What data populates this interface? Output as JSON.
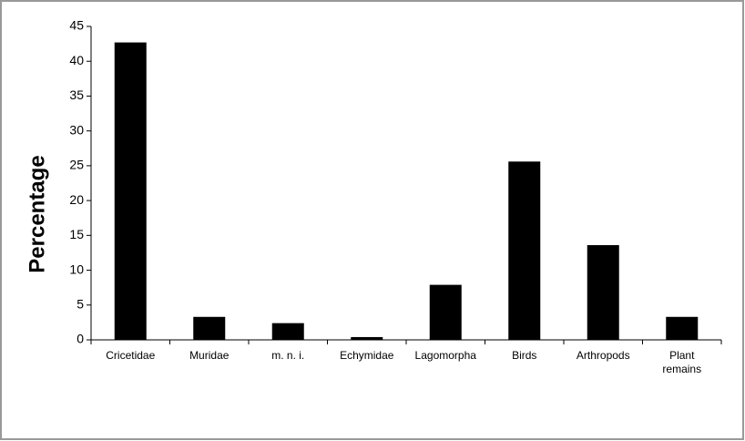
{
  "chart_data": {
    "type": "bar",
    "y_label": "Percentage",
    "categories": [
      "Cricetidae",
      "Muridae",
      "m. n. i.",
      "Echymidae",
      "Lagomorpha",
      "Birds",
      "Arthropods",
      "Plant remains"
    ],
    "values": [
      42.7,
      3.3,
      2.4,
      0.4,
      7.9,
      25.6,
      13.6,
      3.3
    ],
    "color": "#000000",
    "ylim": [
      0,
      45
    ],
    "yticks": [
      0,
      5,
      10,
      15,
      20,
      25,
      30,
      35,
      40,
      45
    ],
    "grid": false
  }
}
